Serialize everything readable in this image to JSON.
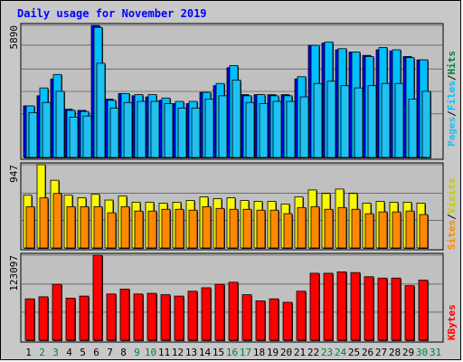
{
  "title": "Daily usage for November 2019",
  "colors": {
    "hits": "#0000f0",
    "files": "#00c0ff",
    "pages": "#20c0f0",
    "visits": "#f8f800",
    "sites": "#ff8800",
    "kbytes": "#ff0000",
    "weekend_label": "#008040",
    "weekday_label": "#000000",
    "title": "#0000ff",
    "panel_bg": "#c0c0c0"
  },
  "legend": {
    "hits": "Hits",
    "files": "Files",
    "pages": "Pages",
    "visits": "Visits",
    "sites": "Sites",
    "kbytes": "KBytes",
    "separator": "/"
  },
  "axis_max_labels": {
    "hits": "5890",
    "visits": "947",
    "kbytes": "123097"
  },
  "chart_data": [
    {
      "type": "bar",
      "panel": "hits-files-pages",
      "categories": [
        "1",
        "2",
        "3",
        "4",
        "5",
        "6",
        "7",
        "8",
        "9",
        "10",
        "11",
        "12",
        "13",
        "14",
        "15",
        "16",
        "17",
        "18",
        "19",
        "20",
        "21",
        "22",
        "23",
        "24",
        "25",
        "26",
        "27",
        "28",
        "29",
        "30",
        "31"
      ],
      "ylim": [
        0,
        5890
      ],
      "series": [
        {
          "name": "Hits",
          "values": [
            2300,
            2750,
            3500,
            2150,
            2100,
            5890,
            2600,
            2850,
            2750,
            2700,
            2550,
            2400,
            2400,
            2900,
            3200,
            4000,
            2800,
            2800,
            2800,
            2800,
            3500,
            5000,
            5100,
            4800,
            4700,
            4550,
            4800,
            4750,
            4500,
            4350,
            null
          ]
        },
        {
          "name": "Files",
          "values": [
            2300,
            3100,
            3700,
            2100,
            2050,
            5800,
            2550,
            2850,
            2800,
            2800,
            2650,
            2500,
            2500,
            2900,
            3300,
            4100,
            2750,
            2800,
            2750,
            2750,
            3600,
            5000,
            5150,
            4850,
            4700,
            4500,
            4900,
            4800,
            4450,
            4350,
            null
          ]
        },
        {
          "name": "Pages",
          "values": [
            2000,
            2450,
            2950,
            1800,
            1850,
            4200,
            2200,
            2450,
            2500,
            2500,
            2400,
            2200,
            2200,
            2600,
            2750,
            3450,
            2450,
            2400,
            2500,
            2500,
            2700,
            3300,
            3400,
            3200,
            3100,
            3200,
            3300,
            3300,
            2600,
            2950,
            null
          ]
        }
      ]
    },
    {
      "type": "bar",
      "panel": "visits-sites",
      "categories": [
        "1",
        "2",
        "3",
        "4",
        "5",
        "6",
        "7",
        "8",
        "9",
        "10",
        "11",
        "12",
        "13",
        "14",
        "15",
        "16",
        "17",
        "18",
        "19",
        "20",
        "21",
        "22",
        "23",
        "24",
        "25",
        "26",
        "27",
        "28",
        "29",
        "30",
        "31"
      ],
      "ylim": [
        0,
        947
      ],
      "series": [
        {
          "name": "Visits",
          "values": [
            600,
            947,
            770,
            600,
            570,
            610,
            545,
            590,
            520,
            520,
            510,
            520,
            540,
            580,
            560,
            570,
            540,
            530,
            530,
            500,
            580,
            660,
            620,
            670,
            620,
            510,
            530,
            520,
            520,
            510,
            null
          ]
        },
        {
          "name": "Sites",
          "values": [
            470,
            570,
            620,
            470,
            470,
            470,
            400,
            470,
            420,
            420,
            440,
            440,
            430,
            470,
            450,
            440,
            440,
            430,
            430,
            390,
            460,
            470,
            440,
            460,
            440,
            390,
            410,
            410,
            420,
            380,
            null
          ]
        }
      ]
    },
    {
      "type": "bar",
      "panel": "kbytes",
      "categories": [
        "1",
        "2",
        "3",
        "4",
        "5",
        "6",
        "7",
        "8",
        "9",
        "10",
        "11",
        "12",
        "13",
        "14",
        "15",
        "16",
        "17",
        "18",
        "19",
        "20",
        "21",
        "22",
        "23",
        "24",
        "25",
        "26",
        "27",
        "28",
        "29",
        "30",
        "31"
      ],
      "ylim": [
        0,
        123097
      ],
      "series": [
        {
          "name": "KBytes",
          "values": [
            60000,
            63000,
            81000,
            61000,
            64000,
            123097,
            67000,
            74000,
            67000,
            68000,
            66000,
            64000,
            71000,
            76000,
            81000,
            84000,
            66000,
            57000,
            60000,
            55000,
            71000,
            97000,
            97000,
            99000,
            98000,
            92000,
            90000,
            90000,
            79000,
            87000,
            null
          ]
        }
      ]
    }
  ],
  "x_labels": [
    {
      "text": "1",
      "weekend": false
    },
    {
      "text": "2",
      "weekend": true
    },
    {
      "text": "3",
      "weekend": true
    },
    {
      "text": "4",
      "weekend": false
    },
    {
      "text": "5",
      "weekend": false
    },
    {
      "text": "6",
      "weekend": false
    },
    {
      "text": "7",
      "weekend": false
    },
    {
      "text": "8",
      "weekend": false
    },
    {
      "text": "9",
      "weekend": true
    },
    {
      "text": "10",
      "weekend": true
    },
    {
      "text": "11",
      "weekend": false
    },
    {
      "text": "12",
      "weekend": false
    },
    {
      "text": "13",
      "weekend": false
    },
    {
      "text": "14",
      "weekend": false
    },
    {
      "text": "15",
      "weekend": false
    },
    {
      "text": "16",
      "weekend": true
    },
    {
      "text": "17",
      "weekend": true
    },
    {
      "text": "18",
      "weekend": false
    },
    {
      "text": "19",
      "weekend": false
    },
    {
      "text": "20",
      "weekend": false
    },
    {
      "text": "21",
      "weekend": false
    },
    {
      "text": "22",
      "weekend": false
    },
    {
      "text": "23",
      "weekend": true
    },
    {
      "text": "24",
      "weekend": true
    },
    {
      "text": "25",
      "weekend": false
    },
    {
      "text": "26",
      "weekend": false
    },
    {
      "text": "27",
      "weekend": false
    },
    {
      "text": "28",
      "weekend": false
    },
    {
      "text": "29",
      "weekend": false
    },
    {
      "text": "30",
      "weekend": true
    },
    {
      "text": "31",
      "weekend": true
    }
  ]
}
